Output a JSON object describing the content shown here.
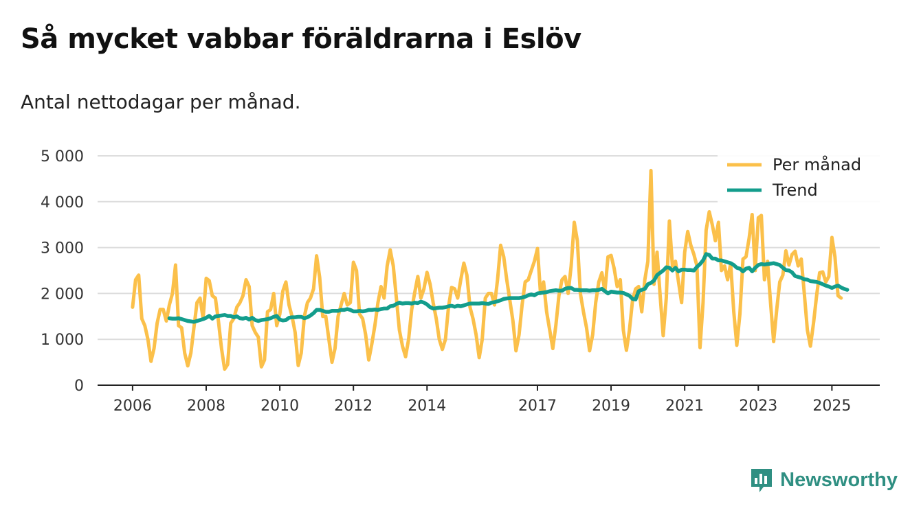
{
  "title": "Så mycket vabbar föräldrarna i Eslöv",
  "subtitle": "Antal nettodagar per månad.",
  "brand": {
    "name": "Newsworthy",
    "icon": "newsworthy-logo-icon",
    "color": "#2f8f82"
  },
  "chart_data": {
    "type": "line",
    "title": "Så mycket vabbar föräldrarna i Eslöv",
    "subtitle": "Antal nettodagar per månad.",
    "xlabel": "",
    "ylabel": "",
    "ylim": [
      0,
      5000
    ],
    "y_ticks": [
      0,
      1000,
      2000,
      3000,
      4000,
      5000
    ],
    "y_tick_labels": [
      "0",
      "1 000",
      "2 000",
      "3 000",
      "4 000",
      "5 000"
    ],
    "x_ticks": [
      2006,
      2008,
      2010,
      2012,
      2014,
      2017,
      2019,
      2021,
      2023,
      2025
    ],
    "x_tick_labels": [
      "2006",
      "2008",
      "2010",
      "2012",
      "2014",
      "2017",
      "2019",
      "2021",
      "2023",
      "2025"
    ],
    "xlim": [
      2005.05,
      2026.3
    ],
    "grid": "horizontal",
    "legend_position": "top-right",
    "series": [
      {
        "name": "Per månad",
        "color": "#fbc04a",
        "start_year": 2006,
        "start_month": 1,
        "values": [
          1700,
          2300,
          2400,
          1450,
          1300,
          1000,
          520,
          800,
          1350,
          1650,
          1650,
          1400,
          1750,
          2000,
          2620,
          1300,
          1250,
          700,
          420,
          700,
          1250,
          1800,
          1900,
          1450,
          2330,
          2280,
          1950,
          1900,
          1400,
          800,
          350,
          450,
          1350,
          1450,
          1700,
          1800,
          1950,
          2300,
          2150,
          1300,
          1150,
          1050,
          400,
          550,
          1600,
          1650,
          2000,
          1300,
          1550,
          2050,
          2250,
          1750,
          1500,
          1150,
          430,
          700,
          1500,
          1800,
          1900,
          2100,
          2820,
          2350,
          1500,
          1500,
          1000,
          500,
          800,
          1500,
          1750,
          2000,
          1750,
          1800,
          2680,
          2500,
          1550,
          1450,
          1100,
          550,
          900,
          1300,
          1800,
          2150,
          1900,
          2600,
          2950,
          2600,
          1900,
          1200,
          850,
          620,
          1000,
          1650,
          2020,
          2370,
          1900,
          2100,
          2460,
          2200,
          1800,
          1450,
          1000,
          780,
          1000,
          1700,
          2130,
          2100,
          1900,
          2300,
          2660,
          2400,
          1700,
          1450,
          1100,
          600,
          1000,
          1900,
          2000,
          2000,
          1750,
          2300,
          3050,
          2800,
          2300,
          1850,
          1400,
          750,
          1100,
          1750,
          2250,
          2300,
          2500,
          2700,
          2980,
          2000,
          2250,
          1600,
          1200,
          800,
          1300,
          1950,
          2300,
          2370,
          2000,
          2600,
          3550,
          3150,
          2000,
          1600,
          1250,
          750,
          1100,
          1800,
          2250,
          2450,
          2050,
          2800,
          2830,
          2550,
          2150,
          2300,
          1200,
          760,
          1200,
          1850,
          2100,
          2150,
          1600,
          2300,
          2700,
          4680,
          2200,
          2900,
          1950,
          1080,
          1900,
          3580,
          2600,
          2700,
          2250,
          1800,
          2900,
          3350,
          3050,
          2850,
          2600,
          820,
          1800,
          3380,
          3780,
          3500,
          3150,
          3550,
          2500,
          2600,
          2300,
          2650,
          1600,
          870,
          1550,
          2750,
          2800,
          3200,
          3720,
          2500,
          3650,
          3700,
          2300,
          2700,
          1800,
          950,
          1650,
          2250,
          2400,
          2930,
          2620,
          2850,
          2920,
          2600,
          2750,
          2000,
          1200,
          850,
          1350,
          1950,
          2450,
          2470,
          2250,
          2370,
          3220,
          2800,
          1950,
          1900
        ]
      },
      {
        "name": "Trend",
        "color": "#139d8c",
        "start_year": 2007,
        "start_month": 1,
        "values": [
          1460,
          1450,
          1450,
          1460,
          1440,
          1420,
          1400,
          1390,
          1380,
          1400,
          1420,
          1440,
          1470,
          1510,
          1450,
          1500,
          1510,
          1520,
          1530,
          1510,
          1510,
          1480,
          1500,
          1460,
          1450,
          1470,
          1430,
          1470,
          1420,
          1400,
          1420,
          1430,
          1440,
          1460,
          1490,
          1510,
          1430,
          1410,
          1420,
          1470,
          1480,
          1480,
          1490,
          1490,
          1460,
          1480,
          1520,
          1570,
          1640,
          1640,
          1620,
          1600,
          1600,
          1620,
          1620,
          1620,
          1640,
          1640,
          1660,
          1640,
          1610,
          1610,
          1620,
          1610,
          1620,
          1640,
          1640,
          1650,
          1640,
          1660,
          1670,
          1670,
          1720,
          1730,
          1770,
          1800,
          1780,
          1790,
          1790,
          1780,
          1800,
          1790,
          1820,
          1800,
          1760,
          1700,
          1670,
          1680,
          1690,
          1690,
          1700,
          1720,
          1730,
          1710,
          1730,
          1720,
          1740,
          1760,
          1780,
          1780,
          1780,
          1780,
          1790,
          1780,
          1770,
          1800,
          1810,
          1830,
          1850,
          1880,
          1890,
          1900,
          1900,
          1900,
          1900,
          1910,
          1930,
          1960,
          1980,
          1960,
          2000,
          2010,
          2020,
          2030,
          2050,
          2060,
          2070,
          2060,
          2060,
          2100,
          2120,
          2120,
          2080,
          2080,
          2070,
          2070,
          2070,
          2060,
          2070,
          2070,
          2080,
          2100,
          2050,
          2000,
          2040,
          2030,
          2020,
          2020,
          2010,
          1980,
          1950,
          1880,
          1870,
          2050,
          2080,
          2100,
          2200,
          2230,
          2280,
          2400,
          2450,
          2500,
          2570,
          2560,
          2500,
          2560,
          2480,
          2520,
          2520,
          2510,
          2510,
          2500,
          2580,
          2640,
          2720,
          2860,
          2840,
          2760,
          2760,
          2720,
          2720,
          2700,
          2680,
          2660,
          2620,
          2560,
          2540,
          2480,
          2540,
          2560,
          2480,
          2560,
          2620,
          2640,
          2630,
          2640,
          2650,
          2660,
          2640,
          2620,
          2560,
          2510,
          2500,
          2460,
          2380,
          2360,
          2340,
          2310,
          2300,
          2270,
          2260,
          2250,
          2230,
          2200,
          2170,
          2150,
          2120,
          2150,
          2170,
          2130,
          2100,
          2080
        ]
      }
    ]
  }
}
